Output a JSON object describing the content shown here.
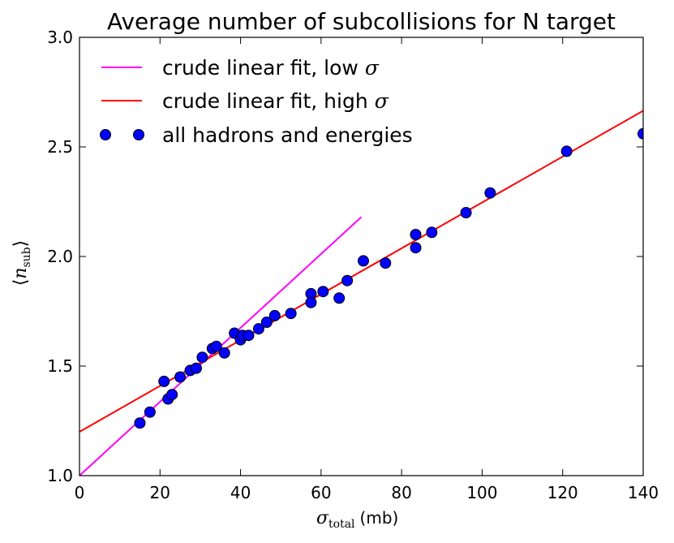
{
  "chart_data": {
    "type": "scatter",
    "title": "Average number of subcollisions for N target",
    "xlabel": {
      "symbol": "σ",
      "subscript": "total",
      "unit": "(mb)"
    },
    "ylabel": {
      "symbol": "n",
      "subscript": "sub",
      "open": "⟨",
      "close": "⟩"
    },
    "xlim": [
      0,
      140
    ],
    "ylim": [
      1.0,
      3.0
    ],
    "xticks": [
      0,
      20,
      40,
      60,
      80,
      100,
      120,
      140
    ],
    "yticks": [
      1.0,
      1.5,
      2.0,
      2.5,
      3.0
    ],
    "xtick_labels": [
      "0",
      "20",
      "40",
      "60",
      "80",
      "100",
      "120",
      "140"
    ],
    "ytick_labels": [
      "1.0",
      "1.5",
      "2.0",
      "2.5",
      "3.0"
    ],
    "series": [
      {
        "name": "crude linear fit, low σ",
        "label_text": "crude linear fit, low",
        "label_symbol": "σ",
        "kind": "line",
        "color": "#ff00ff",
        "x": [
          0,
          70
        ],
        "y": [
          1.0,
          2.18
        ]
      },
      {
        "name": "crude linear fit, high σ",
        "label_text": "crude linear fit, high",
        "label_symbol": "σ",
        "kind": "line",
        "color": "#ff0000",
        "x": [
          0,
          140
        ],
        "y": [
          1.2,
          2.665
        ]
      },
      {
        "name": "all hadrons and energies",
        "label_text": "all hadrons and energies",
        "kind": "scatter",
        "color": "#0000ff",
        "edge_color": "#000000",
        "x": [
          15.0,
          17.5,
          21.0,
          22.0,
          23.0,
          25.0,
          27.5,
          29.0,
          30.5,
          33.0,
          34.0,
          36.0,
          38.5,
          40.0,
          40.5,
          42.0,
          44.5,
          46.5,
          48.5,
          52.5,
          57.5,
          57.5,
          60.5,
          64.5,
          66.5,
          70.5,
          76.0,
          83.5,
          83.5,
          87.5,
          96.0,
          102.0,
          121.0,
          140.0
        ],
        "y": [
          1.24,
          1.29,
          1.43,
          1.35,
          1.37,
          1.45,
          1.48,
          1.49,
          1.54,
          1.58,
          1.59,
          1.56,
          1.65,
          1.62,
          1.64,
          1.64,
          1.67,
          1.7,
          1.73,
          1.74,
          1.83,
          1.79,
          1.84,
          1.81,
          1.89,
          1.98,
          1.97,
          2.1,
          2.04,
          2.11,
          2.2,
          2.29,
          2.48,
          2.56
        ]
      }
    ]
  }
}
